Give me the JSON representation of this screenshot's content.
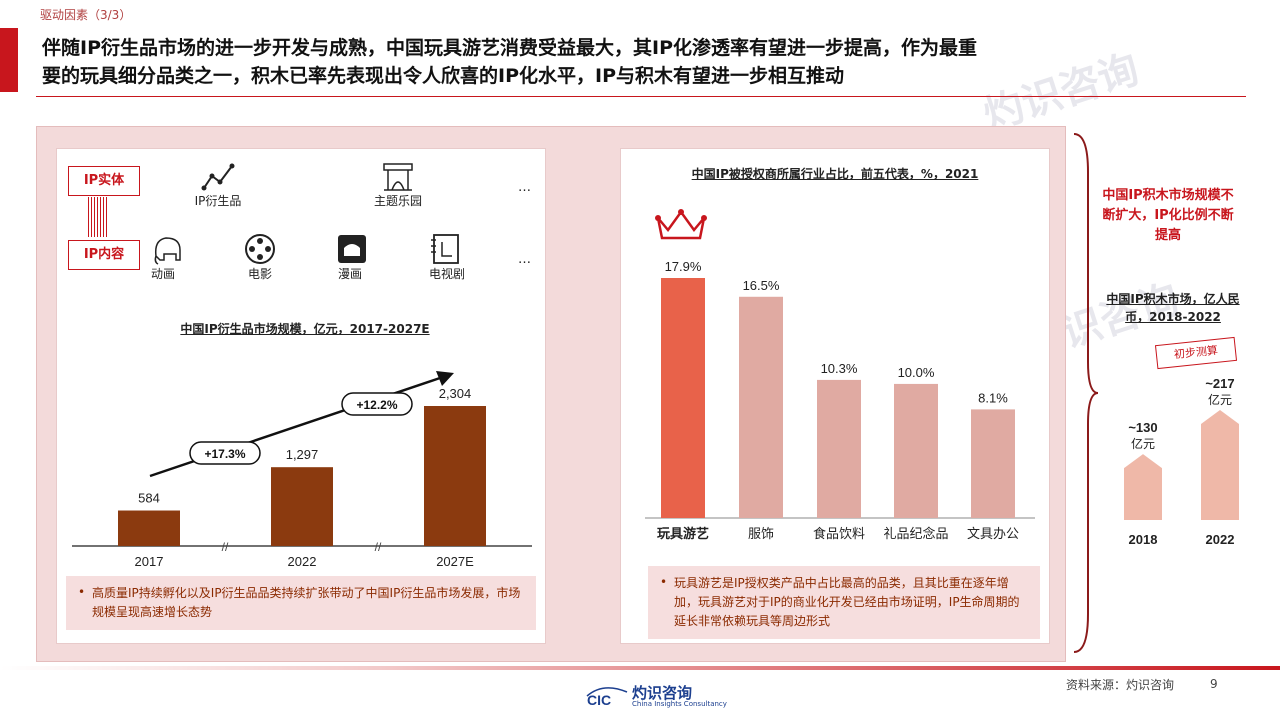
{
  "header": {
    "section_tag": "驱动因素（3/3）",
    "headline_line1": "伴随IP衍生品市场的进一步开发与成熟，中国玩具游艺消费受益最大，其IP化渗透率有望进一步提高，作为最重",
    "headline_line2": "要的玩具细分品类之一，积木已率先表现出令人欣喜的IP化水平，IP与积木有望进一步相互推动"
  },
  "ip_diagram": {
    "tag_entity": "IP实体",
    "tag_content": "IP内容",
    "entity_items": [
      {
        "label": "IP衍生品",
        "icon": "trend-line-icon"
      },
      {
        "label": "主题乐园",
        "icon": "theme-park-icon"
      }
    ],
    "content_items": [
      {
        "label": "动画",
        "icon": "elephant-icon"
      },
      {
        "label": "电影",
        "icon": "film-reel-icon"
      },
      {
        "label": "漫画",
        "icon": "comic-book-icon"
      },
      {
        "label": "电视剧",
        "icon": "tv-script-icon"
      }
    ],
    "more": "…"
  },
  "left_chart": {
    "chart_data": {
      "type": "bar",
      "title": "中国IP衍生品市场规模，亿元，2017-2027E",
      "categories": [
        "2017",
        "2022",
        "2027E"
      ],
      "values": [
        584,
        1297,
        2304
      ],
      "value_labels": [
        "584",
        "1,297",
        "2,304"
      ],
      "cagr_labels": [
        "+17.3%",
        "+12.2%"
      ],
      "color": "#8b3a0f"
    },
    "bullet": "高质量IP持续孵化以及IP衍生品品类持续扩张带动了中国IP衍生品市场发展，市场规模呈现高速增长态势"
  },
  "right_chart": {
    "chart_data": {
      "type": "bar",
      "title": "中国IP被授权商所属行业占比，前五代表，%，2021",
      "categories": [
        "玩具游艺",
        "服饰",
        "食品饮料",
        "礼品纪念品",
        "文具办公"
      ],
      "values": [
        17.9,
        16.5,
        10.3,
        10.0,
        8.1
      ],
      "value_labels": [
        "17.9%",
        "16.5%",
        "10.3%",
        "10.0%",
        "8.1%"
      ],
      "highlight_color": "#e8624a",
      "color": "#e0aaa2"
    },
    "bullet": "玩具游艺是IP授权类产品中占比最高的品类，且其比重在逐年增加，玩具游艺对于IP的商业化开发已经由市场证明，IP生命周期的延长非常依赖玩具等周边形式"
  },
  "side": {
    "note": "中国IP积木市场规模不断扩大，IP化比例不断提高",
    "chart_title": "中国IP积木市场，亿人民币，2018-2022",
    "stamp": "初步测算",
    "chart_data": {
      "type": "bar",
      "categories": [
        "2018",
        "2022"
      ],
      "values": [
        130,
        217
      ],
      "value_labels_line1": [
        "~130",
        "~217"
      ],
      "value_labels_line2": [
        "亿元",
        "亿元"
      ]
    }
  },
  "footer": {
    "source": "资料来源：灼识咨询",
    "page": "9",
    "logo_cn": "灼识咨询",
    "logo_en": "China Insights Consultancy",
    "logo_mark": "CIC"
  }
}
